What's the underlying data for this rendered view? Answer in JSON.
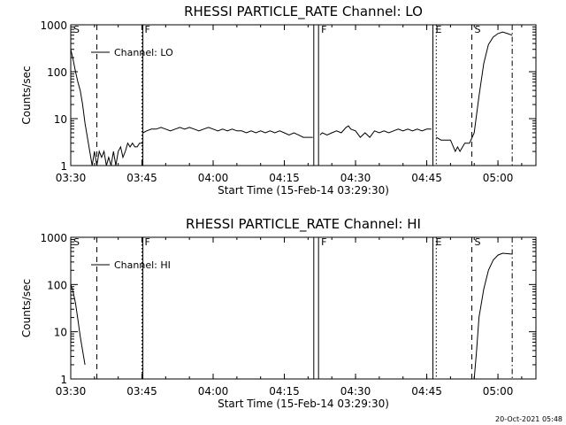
{
  "chart_data": [
    {
      "type": "line",
      "title": "RHESSI PARTICLE_RATE Channel: LO",
      "xlabel": "Start Time (15-Feb-14 03:29:30)",
      "ylabel": "Counts/sec",
      "yscale": "log",
      "ylim": [
        1,
        1000
      ],
      "xlim": [
        "03:30",
        "05:08"
      ],
      "xticks": [
        "03:30",
        "03:45",
        "04:00",
        "04:15",
        "04:30",
        "04:45",
        "05:00"
      ],
      "yticks": [
        "1",
        "10",
        "100",
        "1000"
      ],
      "legend": {
        "label": "Channel: LO",
        "placement": "top-left"
      },
      "event_markers": [
        {
          "label": "S",
          "time": "03:30",
          "style": "dashed"
        },
        {
          "label": "",
          "time": "03:35.5",
          "style": "dashed"
        },
        {
          "label": "F",
          "time": "03:45",
          "style": "dotted"
        },
        {
          "label": "",
          "time": "03:45.2",
          "style": "solid"
        },
        {
          "label": "",
          "time": "04:21.2",
          "style": "solid"
        },
        {
          "label": "F",
          "time": "04:22.2",
          "style": "solid"
        },
        {
          "label": "E",
          "time": "04:46.3",
          "style": "solid"
        },
        {
          "label": "",
          "time": "04:47",
          "style": "dotted"
        },
        {
          "label": "S",
          "time": "04:54.5",
          "style": "dashed"
        },
        {
          "label": "",
          "time": "05:03",
          "style": "dash-dot"
        }
      ],
      "series": [
        {
          "segments": [
            [
              [
                "03:30",
                300
              ],
              [
                "03:30.5",
                180
              ],
              [
                "03:31",
                100
              ],
              [
                "03:31.5",
                60
              ],
              [
                "03:32",
                40
              ],
              [
                "03:32.5",
                20
              ],
              [
                "03:33",
                8
              ],
              [
                "03:33.5",
                4
              ],
              [
                "03:34",
                2
              ],
              [
                "03:34.5",
                1
              ],
              [
                "03:35",
                2
              ],
              [
                "03:35.5",
                1
              ],
              [
                "03:36",
                2
              ],
              [
                "03:36.5",
                1.5
              ],
              [
                "03:37",
                2
              ],
              [
                "03:37.5",
                1
              ],
              [
                "03:38",
                1.5
              ],
              [
                "03:38.5",
                1
              ],
              [
                "03:39",
                2
              ],
              [
                "03:39.5",
                1
              ],
              [
                "03:40",
                2
              ],
              [
                "03:40.5",
                2.5
              ],
              [
                "03:41",
                1.5
              ],
              [
                "03:41.5",
                2
              ],
              [
                "03:42",
                3
              ],
              [
                "03:42.5",
                2.5
              ],
              [
                "03:43",
                3
              ],
              [
                "03:43.5",
                2.5
              ],
              [
                "03:44",
                2.5
              ],
              [
                "03:44.5",
                3
              ],
              [
                "03:45.2",
                3
              ]
            ],
            [
              [
                "03:45.2",
                5
              ],
              [
                "03:46",
                5.5
              ],
              [
                "03:47",
                6
              ],
              [
                "03:48",
                6
              ],
              [
                "03:49",
                6.5
              ],
              [
                "03:50",
                6
              ],
              [
                "03:51",
                5.5
              ],
              [
                "03:52",
                6
              ],
              [
                "03:53",
                6.5
              ],
              [
                "03:54",
                6
              ],
              [
                "03:55",
                6.5
              ],
              [
                "03:56",
                6
              ],
              [
                "03:57",
                5.5
              ],
              [
                "03:58",
                6
              ],
              [
                "03:59",
                6.5
              ],
              [
                "04:00",
                6
              ],
              [
                "04:01",
                5.5
              ],
              [
                "04:02",
                6
              ],
              [
                "04:03",
                5.5
              ],
              [
                "04:04",
                6
              ],
              [
                "04:05",
                5.5
              ],
              [
                "04:06",
                5.5
              ],
              [
                "04:07",
                5
              ],
              [
                "04:08",
                5.5
              ],
              [
                "04:09",
                5
              ],
              [
                "04:10",
                5.5
              ],
              [
                "04:11",
                5
              ],
              [
                "04:12",
                5.5
              ],
              [
                "04:13",
                5
              ],
              [
                "04:14",
                5.5
              ],
              [
                "04:15",
                5
              ],
              [
                "04:16",
                4.5
              ],
              [
                "04:17",
                5
              ],
              [
                "04:18",
                4.5
              ],
              [
                "04:19",
                4
              ],
              [
                "04:20",
                4
              ],
              [
                "04:21",
                4
              ]
            ],
            [
              [
                "04:22.5",
                4.5
              ],
              [
                "04:23",
                5
              ],
              [
                "04:24",
                4.5
              ],
              [
                "04:25",
                5
              ],
              [
                "04:26",
                5.5
              ],
              [
                "04:27",
                5
              ],
              [
                "04:28",
                6.5
              ],
              [
                "04:28.5",
                7
              ],
              [
                "04:29",
                6
              ],
              [
                "04:30",
                5.5
              ],
              [
                "04:31",
                4
              ],
              [
                "04:32",
                5
              ],
              [
                "04:33",
                4
              ],
              [
                "04:34",
                5.5
              ],
              [
                "04:35",
                5
              ],
              [
                "04:36",
                5.5
              ],
              [
                "04:37",
                5
              ],
              [
                "04:38",
                5.5
              ],
              [
                "04:39",
                6
              ],
              [
                "04:40",
                5.5
              ],
              [
                "04:41",
                6
              ],
              [
                "04:42",
                5.5
              ],
              [
                "04:43",
                6
              ],
              [
                "04:44",
                5.5
              ],
              [
                "04:45",
                6
              ],
              [
                "04:46",
                6
              ]
            ],
            [
              [
                "04:47",
                4
              ],
              [
                "04:48",
                3.5
              ],
              [
                "04:49",
                3.5
              ],
              [
                "04:50",
                3.5
              ],
              [
                "04:51",
                2
              ],
              [
                "04:51.5",
                2.5
              ],
              [
                "04:52",
                2
              ],
              [
                "04:53",
                3
              ],
              [
                "04:54",
                3
              ],
              [
                "04:55",
                5
              ],
              [
                "04:56",
                30
              ],
              [
                "04:57",
                150
              ],
              [
                "04:58",
                380
              ],
              [
                "04:59",
                550
              ],
              [
                "05:00",
                650
              ],
              [
                "05:01",
                700
              ],
              [
                "05:02",
                650
              ],
              [
                "05:03",
                600
              ]
            ]
          ]
        }
      ]
    },
    {
      "type": "line",
      "title": "RHESSI PARTICLE_RATE Channel: HI",
      "xlabel": "Start Time (15-Feb-14 03:29:30)",
      "ylabel": "Counts/sec",
      "yscale": "log",
      "ylim": [
        1,
        1000
      ],
      "xlim": [
        "03:30",
        "05:08"
      ],
      "xticks": [
        "03:30",
        "03:45",
        "04:00",
        "04:15",
        "04:30",
        "04:45",
        "05:00"
      ],
      "yticks": [
        "1",
        "10",
        "100",
        "1000"
      ],
      "legend": {
        "label": "Channel: HI",
        "placement": "top-left"
      },
      "event_markers": [
        {
          "label": "S",
          "time": "03:30",
          "style": "dashed"
        },
        {
          "label": "",
          "time": "03:35.5",
          "style": "dashed"
        },
        {
          "label": "F",
          "time": "03:45",
          "style": "dotted"
        },
        {
          "label": "",
          "time": "03:45.2",
          "style": "solid"
        },
        {
          "label": "",
          "time": "04:21.2",
          "style": "solid"
        },
        {
          "label": "F",
          "time": "04:22.2",
          "style": "solid"
        },
        {
          "label": "E",
          "time": "04:46.3",
          "style": "solid"
        },
        {
          "label": "",
          "time": "04:47",
          "style": "dotted"
        },
        {
          "label": "S",
          "time": "04:54.5",
          "style": "dashed"
        },
        {
          "label": "",
          "time": "05:03",
          "style": "dash-dot"
        }
      ],
      "series": [
        {
          "segments": [
            [
              [
                "03:30",
                100
              ],
              [
                "03:30.5",
                70
              ],
              [
                "03:31",
                40
              ],
              [
                "03:31.5",
                18
              ],
              [
                "03:32",
                8
              ],
              [
                "03:32.5",
                4
              ],
              [
                "03:33",
                2
              ]
            ],
            [
              [
                "04:55",
                1
              ],
              [
                "04:55.5",
                4
              ],
              [
                "04:56",
                20
              ],
              [
                "04:57",
                80
              ],
              [
                "04:58",
                200
              ],
              [
                "04:59",
                330
              ],
              [
                "05:00",
                420
              ],
              [
                "05:01",
                460
              ],
              [
                "05:02",
                450
              ],
              [
                "05:03",
                440
              ]
            ]
          ]
        }
      ]
    }
  ],
  "footer": {
    "timestamp": "20-Oct-2021 05:48"
  }
}
